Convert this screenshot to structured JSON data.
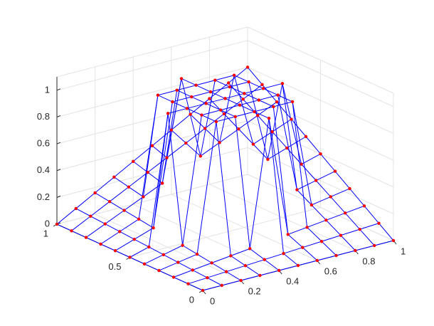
{
  "chart_data": {
    "type": "surface",
    "x": [
      0,
      0.1,
      0.2,
      0.3,
      0.4,
      0.5,
      0.6,
      0.7,
      0.8,
      0.9,
      1
    ],
    "y": [
      0,
      0.1,
      0.2,
      0.3,
      0.4,
      0.5,
      0.6,
      0.7,
      0.8,
      0.9,
      1
    ],
    "z": [
      [
        0,
        0,
        0,
        0,
        0,
        0,
        0,
        0,
        0,
        0,
        0
      ],
      [
        0,
        0.008,
        0.016,
        0.024,
        0.032,
        0.04,
        0.048,
        0.056,
        0.064,
        0.072,
        0.08
      ],
      [
        0,
        0.016,
        0.032,
        0.048,
        0.064,
        1,
        0.096,
        0.112,
        0.128,
        0.144,
        0.16
      ],
      [
        0,
        0.024,
        0.048,
        1,
        1,
        1,
        1,
        1,
        0.192,
        0.216,
        0.24
      ],
      [
        0,
        0.032,
        0.064,
        1,
        1,
        1,
        1,
        1,
        0.256,
        0.288,
        0.32
      ],
      [
        0,
        0.04,
        1,
        1,
        1,
        1,
        1,
        1,
        1,
        0.36,
        0.4
      ],
      [
        0,
        0.048,
        0.096,
        1,
        1,
        1,
        1,
        1,
        0.384,
        0.432,
        0.48
      ],
      [
        0,
        0.056,
        0.112,
        1,
        1,
        1,
        1,
        1,
        0.448,
        0.504,
        0.56
      ],
      [
        0,
        0.064,
        0.128,
        0.192,
        0.256,
        1,
        0.384,
        0.448,
        0.512,
        0.576,
        0.64
      ],
      [
        0,
        0.072,
        0.144,
        0.216,
        0.288,
        0.36,
        0.432,
        0.504,
        0.576,
        0.648,
        0.72
      ],
      [
        0,
        0.08,
        0.16,
        0.24,
        0.32,
        0.4,
        0.48,
        0.56,
        0.64,
        0.72,
        0.8
      ]
    ],
    "xlim": [
      0,
      1
    ],
    "ylim": [
      0,
      1
    ],
    "zlim": [
      0,
      1.1
    ],
    "xticks": [
      0,
      0.2,
      0.4,
      0.6,
      0.8,
      1
    ],
    "yticks": [
      0,
      0.5,
      1
    ],
    "zticks": [
      0,
      0.2,
      0.4,
      0.6,
      0.8,
      1
    ],
    "grid": true,
    "edge_color": "#0000ff",
    "marker_color": "#ff0000"
  }
}
